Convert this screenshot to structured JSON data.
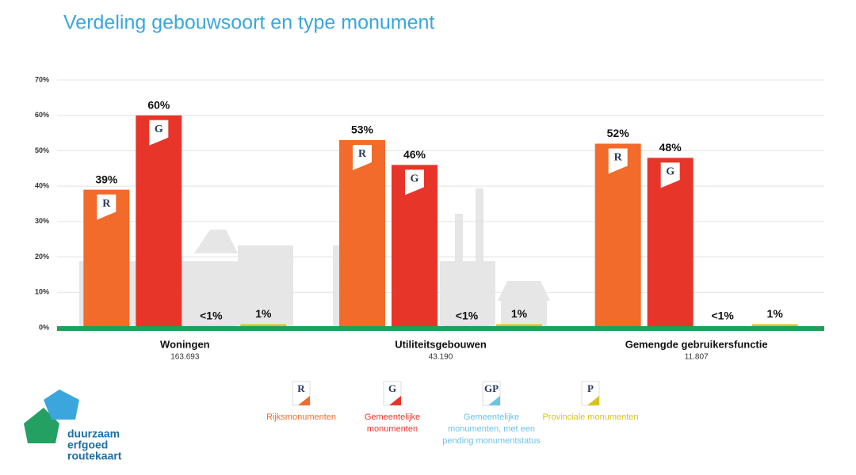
{
  "chart_data": {
    "type": "bar",
    "title": "Verdeling gebouwsoort en type monument",
    "categories": [
      "Woningen",
      "Utiliteitsgebouwen",
      "Gemengde gebruikersfunctie"
    ],
    "category_counts": [
      "163.693",
      "43.190",
      "11.807"
    ],
    "series": [
      {
        "name": "Rijksmonumenten",
        "badge": "R",
        "color": "#f26b2a",
        "values": [
          39,
          53,
          52
        ],
        "value_labels": [
          "39%",
          "53%",
          "52%"
        ]
      },
      {
        "name": "Gemeentelijke monumenten",
        "badge": "G",
        "color": "#e8352a",
        "values": [
          60,
          46,
          48
        ],
        "value_labels": [
          "60%",
          "46%",
          "48%"
        ]
      },
      {
        "name": "Gemeentelijke monumenten, met een pending monumentstatus",
        "badge": "GP",
        "color": "#6cc3e6",
        "values": [
          0.5,
          0.5,
          0.5
        ],
        "value_labels": [
          "<1%",
          "<1%",
          "<1%"
        ]
      },
      {
        "name": "Provinciale monumenten",
        "badge": "P",
        "color": "#d8c31e",
        "values": [
          1,
          1,
          1
        ],
        "value_labels": [
          "1%",
          "1%",
          "1%"
        ]
      }
    ],
    "ylim": [
      0,
      70
    ],
    "yticks": [
      {
        "value": 0,
        "label": "0%"
      },
      {
        "value": 10,
        "label": "10%"
      },
      {
        "value": 20,
        "label": "20%"
      },
      {
        "value": 30,
        "label": "30%"
      },
      {
        "value": 40,
        "label": "40%"
      },
      {
        "value": 50,
        "label": "50%"
      },
      {
        "value": 60,
        "label": "60%"
      },
      {
        "value": 70,
        "label": "70%"
      }
    ],
    "grid": true
  },
  "logo": {
    "lines": [
      "duurzaam",
      "erfgoed",
      "routekaart"
    ]
  }
}
